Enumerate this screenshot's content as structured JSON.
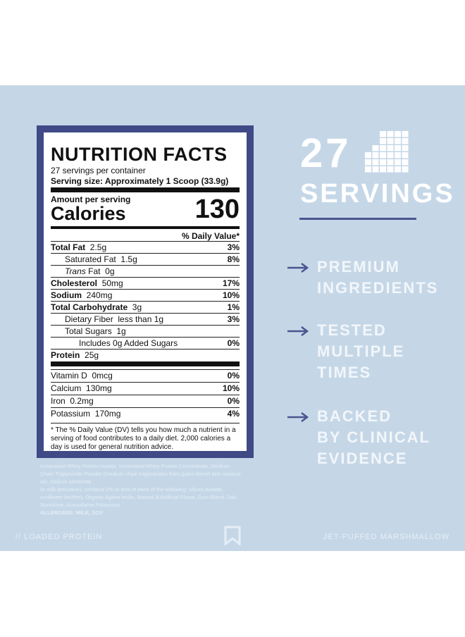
{
  "label": {
    "title": "NUTRITION FACTS",
    "servings_per_container": "27 servings per container",
    "serving_size": "Serving size: Approximately 1 Scoop (33.9g)",
    "amount_per_serving": "Amount per serving",
    "calories_label": "Calories",
    "calories_value": "130",
    "dv_header": "% Daily Value*",
    "rows": [
      {
        "name": "Total Fat",
        "amount": "2.5g",
        "dv": "3%"
      },
      {
        "name": "Saturated Fat",
        "amount": "1.5g",
        "dv": "8%"
      },
      {
        "name_italic": "Trans",
        "name": "Fat",
        "amount": "0g"
      },
      {
        "name": "Cholesterol",
        "amount": "50mg",
        "dv": "17%"
      },
      {
        "name": "Sodium",
        "amount": "240mg",
        "dv": "10%"
      },
      {
        "name": "Total Carbohydrate",
        "amount": "3g",
        "dv": "1%"
      },
      {
        "name": "Dietary Fiber",
        "amount": "less than 1g",
        "dv": "3%"
      },
      {
        "name": "Total Sugars",
        "amount": "1g"
      },
      {
        "name": "Includes 0g Added Sugars",
        "dv": "0%"
      },
      {
        "name": "Protein",
        "amount": "25g"
      }
    ],
    "vitamins": [
      {
        "name": "Vitamin D",
        "amount": "0mcg",
        "dv": "0%"
      },
      {
        "name": "Calcium",
        "amount": "130mg",
        "dv": "10%"
      },
      {
        "name": "Iron",
        "amount": "0.2mg",
        "dv": "0%"
      },
      {
        "name": "Potassium",
        "amount": "170mg",
        "dv": "4%"
      }
    ],
    "footnote": "* The % Daily Value (DV) tells you how much a nutrient in a serving of food contributes to a daily diet. 2,000 calories a day is used for general nutrition advice."
  },
  "ingredients": [
    "Instantized Whey Protein Isolate, Instantized Whey Protein Concentrate, Medium Chain Triglyceride Powder (medium chain triglycerides from (palm kernel and coconut oil), sodium caseinate",
    "(a milk derivative), contains 2% or less of each of the following: silicon dioxide, sunflower lecithin), Organic Agave Inulin, Natural & Artificial Flavor, Gum Blend, Salt, Sucralose, Acesulfame Potassium"
  ],
  "allergens": "ALLERGENS: MILK, SOY",
  "servings": {
    "count": "27",
    "label": "SERVINGS"
  },
  "features": [
    [
      "PREMIUM",
      "INGREDIENTS"
    ],
    [
      "TESTED",
      "MULTIPLE",
      "TIMES"
    ],
    [
      "BACKED",
      "BY CLINICAL",
      "EVIDENCE"
    ]
  ],
  "footer": {
    "left": "// LOADED PROTEIN",
    "right": "JET-PUFFED MARSHMALLOW"
  }
}
